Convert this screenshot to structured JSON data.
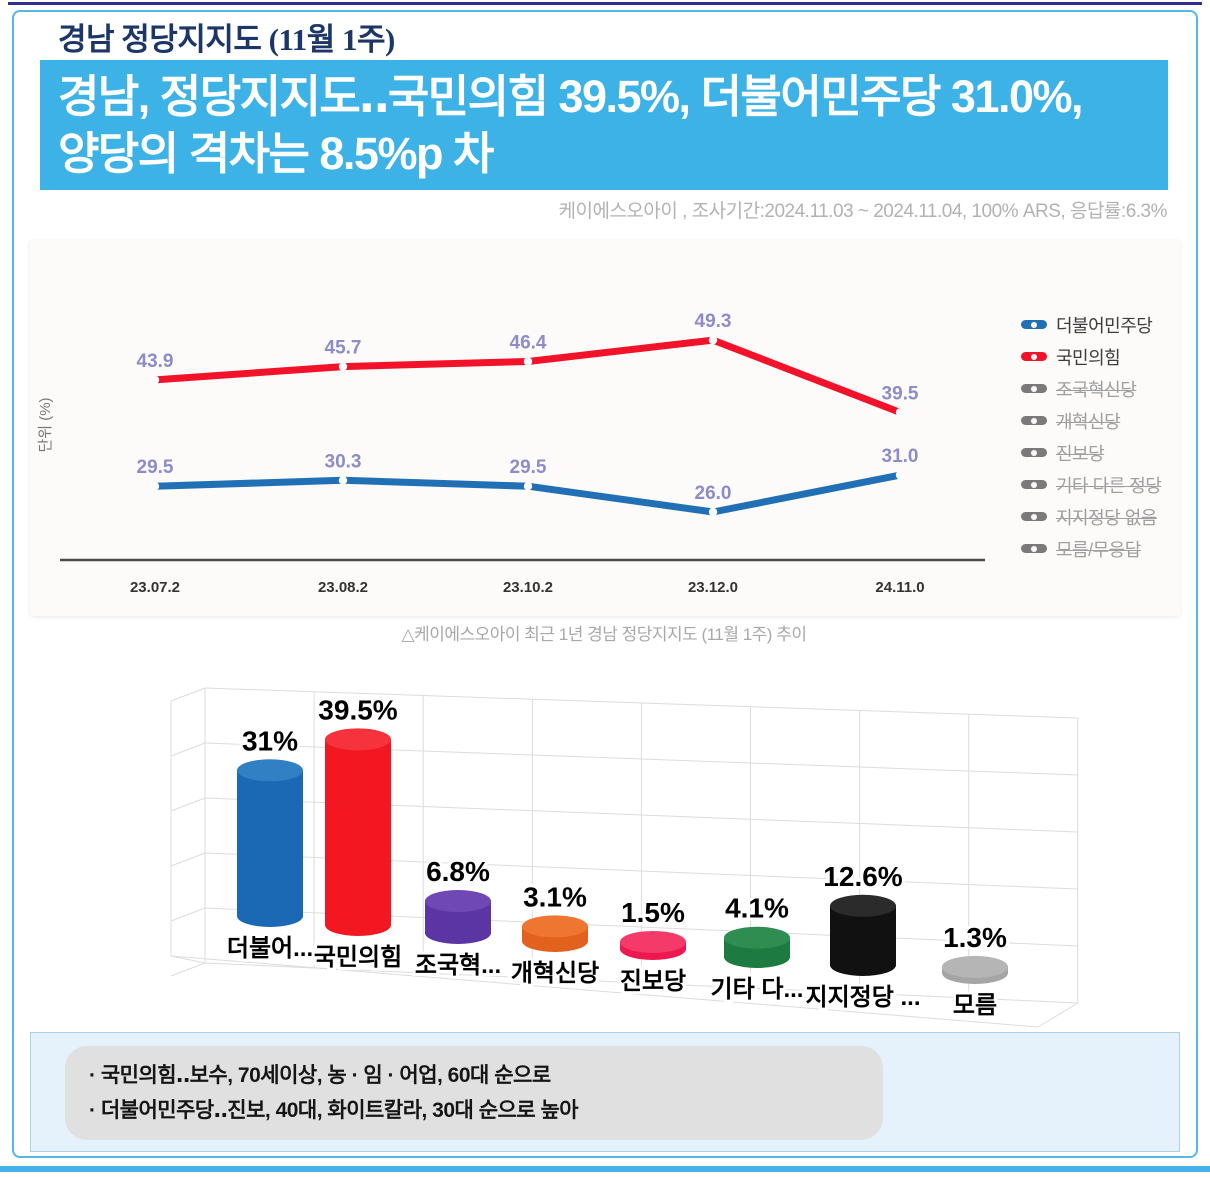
{
  "header": {
    "title": "경남 정당지지도 (11월 1주)",
    "headline_line1": "경남, 정당지지도‥국민의힘 39.5%, 더불어민주당 31.0%,",
    "headline_line2": "양당의 격차는 8.5%p 차",
    "survey_info": "케이에스오아이 , 조사기간:2024.11.03 ~ 2024.11.04, 100% ARS, 응답률:6.3%"
  },
  "colors": {
    "headline_band": "#3db2e6",
    "frame_border": "#5ab5e7",
    "top_accent": "#2e3192",
    "bottom_accent": "#45b1e8",
    "democratic_blue": "#2170b5",
    "ppp_red": "#f2132a",
    "data_label_purple": "#8e8cc8",
    "notes_band_bg": "#e6f2fb",
    "notes_box_bg": "#e0e0e0"
  },
  "chart_data": [
    {
      "type": "line",
      "title": "경남 정당지지도 최근 1년 추이",
      "caption": "△케이에스오아이 최근 1년 경남 정당지지도 (11월 1주) 추이",
      "ylabel": "단위 (%)",
      "x": [
        "23.07.2",
        "23.08.2",
        "23.10.2",
        "23.12.0",
        "24.11.0"
      ],
      "series": [
        {
          "name": "더불어민주당",
          "color": "#2170b5",
          "values": [
            29.5,
            30.3,
            29.5,
            26.0,
            31.0
          ]
        },
        {
          "name": "국민의힘",
          "color": "#f2132a",
          "values": [
            43.9,
            45.7,
            46.4,
            49.3,
            39.5
          ]
        }
      ],
      "legend": [
        {
          "label": "더불어민주당",
          "color": "#2170b5",
          "active": true
        },
        {
          "label": "국민의힘",
          "color": "#f2132a",
          "active": true
        },
        {
          "label": "조국혁신당",
          "color": "#7a7a7a",
          "active": false
        },
        {
          "label": "개혁신당",
          "color": "#7a7a7a",
          "active": false
        },
        {
          "label": "진보당",
          "color": "#7a7a7a",
          "active": false
        },
        {
          "label": "기타 다른 정당",
          "color": "#7a7a7a",
          "active": false
        },
        {
          "label": "지지정당 없음",
          "color": "#7a7a7a",
          "active": false
        },
        {
          "label": "모름/무응답",
          "color": "#7a7a7a",
          "active": false
        }
      ],
      "legend_position": "right",
      "grid": false,
      "visible_value_range": [
        19.5,
        52
      ]
    },
    {
      "type": "bar",
      "style": "3d-cylinder",
      "categories": [
        "더불어...",
        "국민의힘",
        "조국혁...",
        "개혁신당",
        "진보당",
        "기타 다...",
        "지지정당 ...",
        "모름"
      ],
      "values": [
        31,
        39.5,
        6.8,
        3.1,
        1.5,
        4.1,
        12.6,
        1.3
      ],
      "value_labels": [
        "31%",
        "39.5%",
        "6.8%",
        "3.1%",
        "1.5%",
        "4.1%",
        "12.6%",
        "1.3%"
      ],
      "colors": [
        "#1b69b4",
        "#f31722",
        "#5c35a4",
        "#e2611c",
        "#ee1850",
        "#1d7a40",
        "#111111",
        "#a5a5a5"
      ],
      "top_colors": [
        "#3180c4",
        "#f6323c",
        "#6f48b5",
        "#ee7630",
        "#f43a68",
        "#2f8d52",
        "#2b2b2b",
        "#b5b5b5"
      ]
    }
  ],
  "notes": {
    "line1": "· 국민의힘‥보수, 70세이상, 농 · 임 · 어업, 60대 순으로",
    "line2": "· 더불어민주당‥진보, 40대, 화이트칼라, 30대 순으로 높아"
  }
}
